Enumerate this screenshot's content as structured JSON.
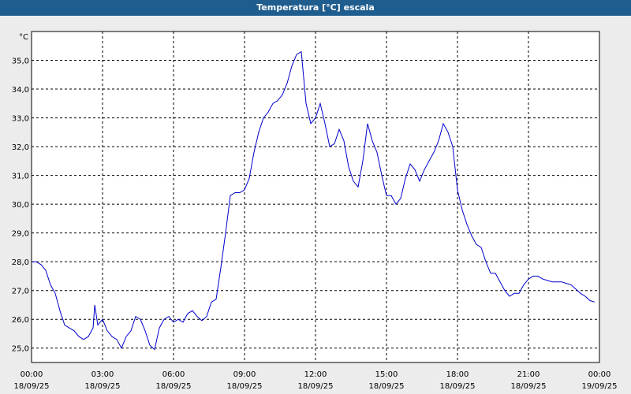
{
  "window": {
    "title": "Temperatura [°C] escala"
  },
  "chart_data": {
    "type": "line",
    "title": "Temperatura [°C] escala",
    "ylabel": "°C",
    "xlabel": "",
    "ylim": [
      24.5,
      36.0
    ],
    "xlim_hours": [
      0,
      24
    ],
    "grid": true,
    "y_ticks": [
      "25,0",
      "26,0",
      "27,0",
      "28,0",
      "29,0",
      "30,0",
      "31,0",
      "32,0",
      "33,0",
      "34,0",
      "35,0"
    ],
    "x_ticks": [
      {
        "time": "00:00",
        "date": "18/09/25"
      },
      {
        "time": "03:00",
        "date": "18/09/25"
      },
      {
        "time": "06:00",
        "date": "18/09/25"
      },
      {
        "time": "09:00",
        "date": "18/09/25"
      },
      {
        "time": "12:00",
        "date": "18/09/25"
      },
      {
        "time": "15:00",
        "date": "18/09/25"
      },
      {
        "time": "18:00",
        "date": "18/09/25"
      },
      {
        "time": "21:00",
        "date": "18/09/25"
      },
      {
        "time": "00:00",
        "date": "19/09/25"
      }
    ],
    "series": [
      {
        "color": "#0000cc",
        "x": [
          0.0,
          0.2,
          0.4,
          0.6,
          0.8,
          1.0,
          1.2,
          1.4,
          1.6,
          1.8,
          2.0,
          2.2,
          2.4,
          2.6,
          2.67,
          2.8,
          3.0,
          3.2,
          3.4,
          3.6,
          3.8,
          4.0,
          4.2,
          4.4,
          4.6,
          4.8,
          5.0,
          5.2,
          5.4,
          5.6,
          5.8,
          6.0,
          6.2,
          6.4,
          6.6,
          6.8,
          7.0,
          7.2,
          7.4,
          7.6,
          7.8,
          8.0,
          8.2,
          8.4,
          8.6,
          8.8,
          9.0,
          9.2,
          9.4,
          9.6,
          9.8,
          10.0,
          10.2,
          10.4,
          10.6,
          10.8,
          11.0,
          11.2,
          11.4,
          11.6,
          11.8,
          12.0,
          12.2,
          12.4,
          12.6,
          12.8,
          13.0,
          13.2,
          13.4,
          13.6,
          13.8,
          14.0,
          14.2,
          14.4,
          14.6,
          14.8,
          15.0,
          15.2,
          15.4,
          15.6,
          15.8,
          16.0,
          16.2,
          16.4,
          16.6,
          16.8,
          17.0,
          17.2,
          17.4,
          17.6,
          17.8,
          18.0,
          18.2,
          18.4,
          18.6,
          18.8,
          19.0,
          19.2,
          19.4,
          19.6,
          19.8,
          20.0,
          20.2,
          20.4,
          20.6,
          20.8,
          21.0,
          21.2,
          21.4,
          21.6,
          21.8,
          22.0,
          22.2,
          22.4,
          22.6,
          22.8,
          23.0,
          23.2,
          23.4,
          23.6,
          23.8
        ],
        "y": [
          28.0,
          28.0,
          27.9,
          27.7,
          27.2,
          26.9,
          26.3,
          25.8,
          25.7,
          25.6,
          25.4,
          25.3,
          25.4,
          25.7,
          26.5,
          25.8,
          26.0,
          25.6,
          25.4,
          25.3,
          25.0,
          25.4,
          25.6,
          26.1,
          26.0,
          25.6,
          25.1,
          24.95,
          25.7,
          26.0,
          26.1,
          25.9,
          26.0,
          25.9,
          26.2,
          26.3,
          26.1,
          25.95,
          26.1,
          26.6,
          26.7,
          27.8,
          29.0,
          30.3,
          30.4,
          30.4,
          30.5,
          30.9,
          31.8,
          32.5,
          33.0,
          33.2,
          33.5,
          33.6,
          33.8,
          34.2,
          34.8,
          35.2,
          35.3,
          33.5,
          32.8,
          33.0,
          33.5,
          32.8,
          32.0,
          32.1,
          32.6,
          32.2,
          31.3,
          30.8,
          30.6,
          31.5,
          32.8,
          32.2,
          31.8,
          31.0,
          30.3,
          30.3,
          30.0,
          30.2,
          30.9,
          31.4,
          31.2,
          30.8,
          31.2,
          31.5,
          31.8,
          32.2,
          32.8,
          32.5,
          32.0,
          30.5,
          29.8,
          29.3,
          28.9,
          28.6,
          28.5,
          28.0,
          27.6,
          27.6,
          27.3,
          27.0,
          26.8,
          26.9,
          26.9,
          27.2,
          27.4,
          27.5,
          27.5,
          27.4,
          27.35,
          27.3,
          27.3,
          27.3,
          27.25,
          27.2,
          27.05,
          26.9,
          26.8,
          26.65,
          26.6
        ]
      }
    ]
  }
}
